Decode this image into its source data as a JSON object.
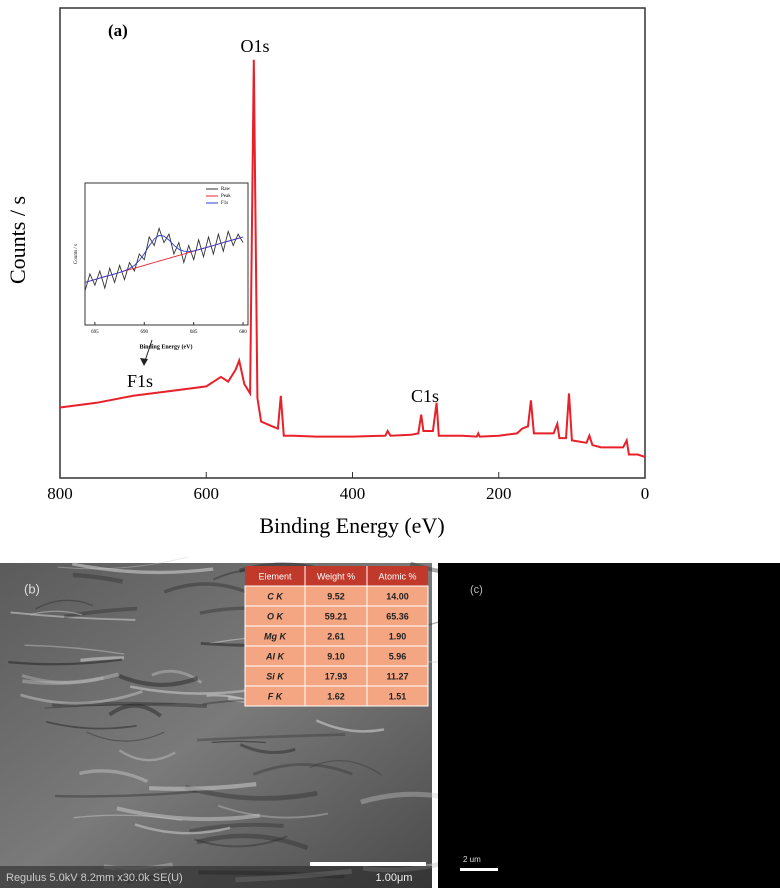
{
  "chart_data": [
    {
      "type": "line",
      "panel_label": "(a)",
      "xlabel": "Binding Energy (eV)",
      "ylabel": "Counts / s",
      "xlim": [
        800,
        0
      ],
      "xticks": [
        800,
        600,
        400,
        200,
        0
      ],
      "ylim": [
        0,
        100
      ],
      "color": "#e8202a",
      "annotations": [
        "O1s",
        "C1s",
        "F1s"
      ],
      "x": [
        800,
        750,
        700,
        650,
        600,
        580,
        570,
        560,
        555,
        548,
        540,
        535,
        530,
        525,
        510,
        502,
        498,
        494,
        480,
        450,
        400,
        355,
        352,
        348,
        320,
        310,
        306,
        303,
        290,
        285,
        282,
        250,
        230,
        228,
        226,
        200,
        175,
        168,
        160,
        156,
        152,
        125,
        120,
        117,
        108,
        104,
        100,
        80,
        76,
        72,
        60,
        30,
        25,
        22,
        10,
        0
      ],
      "values": [
        15,
        16,
        17.5,
        18.5,
        19.5,
        21.5,
        20.5,
        23,
        25,
        20,
        18,
        89,
        17,
        12,
        11,
        10.5,
        17.5,
        9,
        9,
        8.8,
        8.8,
        9,
        10,
        9,
        9.2,
        9.5,
        13.5,
        10,
        10,
        16,
        9,
        9,
        8.8,
        9.5,
        8.8,
        9,
        9.5,
        10.5,
        11,
        16.5,
        9.5,
        9.5,
        11.5,
        8.5,
        8.5,
        18,
        8,
        7.5,
        9,
        7,
        6.5,
        6.5,
        8,
        5,
        5,
        4.5
      ]
    },
    {
      "type": "line",
      "xlabel": "Binding Energy (eV)",
      "ylabel": "Counts / s",
      "xlim": [
        696,
        679.5
      ],
      "xticks": [
        695,
        690,
        685,
        680
      ],
      "ylim": [
        15,
        65
      ],
      "x": [
        696,
        695.5,
        695,
        694.5,
        694,
        693.5,
        693,
        692.5,
        692,
        691.5,
        691,
        690.5,
        690,
        689.5,
        689,
        688.5,
        688,
        687.5,
        687,
        686.5,
        686,
        685.5,
        685,
        684.5,
        684,
        683.5,
        683,
        682.5,
        682,
        681.5,
        681,
        680.5,
        680
      ],
      "series": [
        {
          "name": "Raw",
          "color": "#333333",
          "values": [
            27,
            33,
            29,
            34,
            28,
            35,
            30,
            36,
            31,
            37,
            34,
            40,
            38,
            46,
            43,
            49,
            44,
            47,
            40,
            44,
            37,
            43,
            38,
            45,
            39,
            46,
            40,
            47,
            41,
            48,
            43,
            47,
            44
          ]
        },
        {
          "name": "Peak",
          "color": "#e8202a",
          "values": [
            30,
            30.5,
            31,
            31.5,
            32,
            32.5,
            33,
            33.5,
            34,
            34.5,
            35,
            35.5,
            36,
            36.5,
            37,
            37.5,
            38,
            38.5,
            39,
            39.5,
            40,
            40.5,
            41,
            41.5,
            42,
            42.5,
            43,
            43.5,
            44,
            44.5,
            45,
            45.5,
            46
          ]
        },
        {
          "name": "F1s",
          "color": "#2b3fd6",
          "values": [
            30,
            30.5,
            31,
            31.5,
            32.1,
            32.5,
            33,
            33.5,
            34.1,
            34.9,
            36,
            37.7,
            40.1,
            42.9,
            45.3,
            46.5,
            46.3,
            44.9,
            43.1,
            41.7,
            41,
            40.9,
            41.1,
            41.5,
            42,
            42.5,
            43,
            43.5,
            44,
            44.5,
            45,
            45.5,
            46
          ]
        }
      ]
    }
  ],
  "panel_b": {
    "label": "(b)",
    "table": {
      "header": [
        "Element",
        "Weight %",
        "Atomic %"
      ],
      "rows": [
        [
          "C K",
          "9.52",
          "14.00"
        ],
        [
          "O K",
          "59.21",
          "65.36"
        ],
        [
          "Mg K",
          "2.61",
          "1.90"
        ],
        [
          "Al K",
          "9.10",
          "5.96"
        ],
        [
          "Si K",
          "17.93",
          "11.27"
        ],
        [
          "F K",
          "1.62",
          "1.51"
        ]
      ]
    },
    "caption": "Regulus 5.0kV 8.2mm x30.0k SE(U)",
    "scale_bar": "1.00μm"
  },
  "panel_c": {
    "label": "(c)",
    "scale_bar": "2 um"
  }
}
